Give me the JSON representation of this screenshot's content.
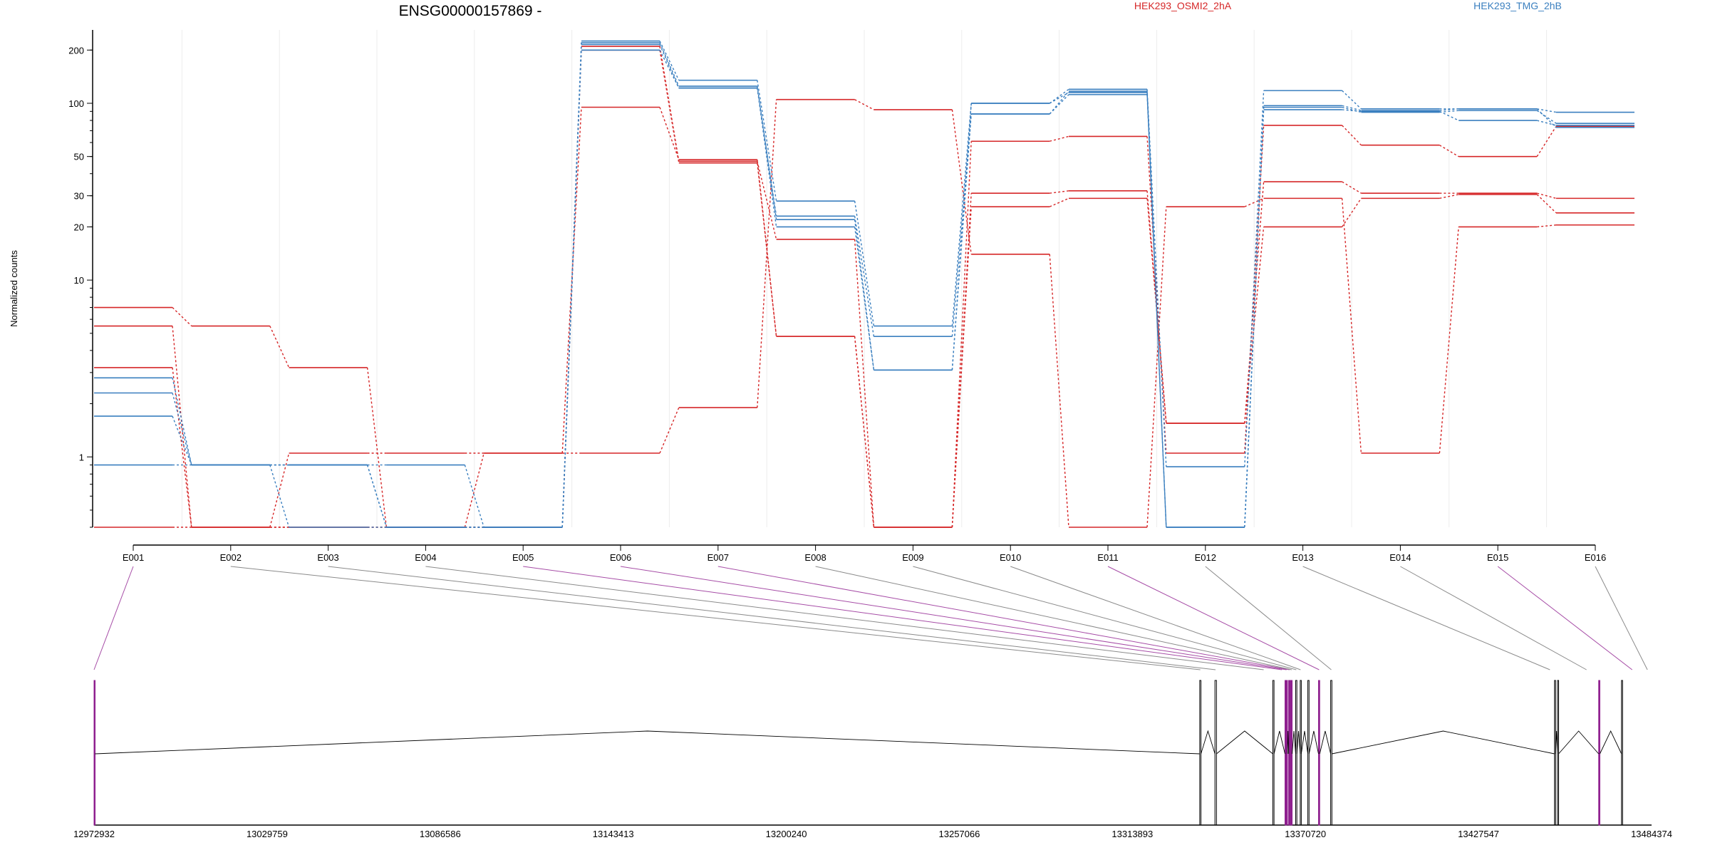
{
  "chart_data": {
    "type": "line",
    "title": "ENSG00000157869 -",
    "ylabel": "Normalized counts",
    "y_scale": "log",
    "y_ticks": [
      "200",
      "100",
      "50",
      "30",
      "20",
      "10",
      "1"
    ],
    "ylim": [
      0.4,
      260
    ],
    "categories": [
      "E001",
      "E002",
      "E003",
      "E004",
      "E005",
      "E006",
      "E007",
      "E008",
      "E009",
      "E010",
      "E011",
      "E012",
      "E013",
      "E014",
      "E015",
      "E016"
    ],
    "groups": [
      {
        "name": "HEK293_OSMI2_2hA",
        "color": "#d62728"
      },
      {
        "name": "HEK293_TMG_2hB",
        "color": "#3a7fbf"
      }
    ],
    "series": [
      {
        "group": "HEK293_OSMI2_2hA",
        "values": [
          7.0,
          5.5,
          3.2,
          0.4,
          1.05,
          1.05,
          1.9,
          105,
          92,
          14,
          0.4,
          26,
          29,
          1.05,
          20,
          20.5
        ]
      },
      {
        "group": "HEK293_OSMI2_2hA",
        "values": [
          5.5,
          0.4,
          0.4,
          0.4,
          0.4,
          210,
          47,
          17,
          0.4,
          31,
          32,
          1.55,
          36,
          31,
          31,
          29
        ]
      },
      {
        "group": "HEK293_OSMI2_2hA",
        "values": [
          3.2,
          0.4,
          1.05,
          1.05,
          1.05,
          95,
          48,
          4.8,
          0.4,
          61,
          65,
          1.05,
          75,
          58,
          50,
          74
        ]
      },
      {
        "group": "HEK293_OSMI2_2hA",
        "values": [
          0.4,
          0.4,
          0.4,
          0.4,
          0.4,
          200,
          46,
          4.8,
          0.4,
          26,
          29,
          1.55,
          20,
          29,
          30.5,
          24
        ]
      },
      {
        "group": "HEK293_TMG_2hB",
        "values": [
          2.3,
          0.9,
          0.9,
          0.9,
          0.4,
          225,
          135,
          28,
          5.5,
          100,
          120,
          0.88,
          118,
          93,
          93,
          89
        ]
      },
      {
        "group": "HEK293_TMG_2hB",
        "values": [
          1.7,
          0.9,
          0.9,
          0.4,
          0.4,
          215,
          122,
          23,
          4.8,
          87,
          112,
          0.4,
          95,
          89,
          91,
          77
        ]
      },
      {
        "group": "HEK293_TMG_2hB",
        "values": [
          0.9,
          0.9,
          0.9,
          0.4,
          0.4,
          200,
          122,
          20,
          3.1,
          87,
          117,
          0.4,
          92,
          90,
          80,
          75
        ]
      },
      {
        "group": "HEK293_TMG_2hB",
        "values": [
          2.8,
          0.9,
          0.4,
          0.4,
          0.4,
          220,
          125,
          22,
          3.1,
          100,
          115,
          0.4,
          97,
          91,
          93,
          73
        ]
      }
    ],
    "gene_model": {
      "coord_ticks": [
        "12972932",
        "13029759",
        "13086586",
        "13143413",
        "13200240",
        "13257066",
        "13313893",
        "13370720",
        "13427547",
        "13484374"
      ],
      "coord_range": [
        12972932,
        13484374
      ],
      "exons": [
        {
          "id": "E001",
          "start": 12972932,
          "end": 12973200,
          "highlight": true
        },
        {
          "id": "E002",
          "start": 13336000,
          "end": 13336400,
          "highlight": false
        },
        {
          "id": "E003",
          "start": 13341000,
          "end": 13341500,
          "highlight": false
        },
        {
          "id": "E004",
          "start": 13360000,
          "end": 13360400,
          "highlight": false
        },
        {
          "id": "E005",
          "start": 13364000,
          "end": 13364800,
          "highlight": true
        },
        {
          "id": "E006",
          "start": 13365200,
          "end": 13365800,
          "highlight": true
        },
        {
          "id": "E007",
          "start": 13366000,
          "end": 13366300,
          "highlight": true
        },
        {
          "id": "E008",
          "start": 13367500,
          "end": 13367900,
          "highlight": false
        },
        {
          "id": "E009",
          "start": 13369000,
          "end": 13369300,
          "highlight": false
        },
        {
          "id": "E010",
          "start": 13371500,
          "end": 13371900,
          "highlight": false
        },
        {
          "id": "E011",
          "start": 13375000,
          "end": 13375400,
          "highlight": true
        },
        {
          "id": "E012",
          "start": 13379000,
          "end": 13379400,
          "highlight": false
        },
        {
          "id": "E013",
          "start": 13452500,
          "end": 13452800,
          "highlight": false
        },
        {
          "id": "E014",
          "start": 13453500,
          "end": 13453800,
          "highlight": false
        },
        {
          "id": "E015",
          "start": 13467000,
          "end": 13467400,
          "highlight": true
        },
        {
          "id": "E016",
          "start": 13474500,
          "end": 13474800,
          "highlight": false
        }
      ],
      "connector_targets": [
        12972932,
        13336200,
        13341200,
        13357000,
        13363000,
        13364500,
        13365500,
        13366200,
        13367700,
        13369100,
        13375200,
        13379200,
        13451000,
        13463000,
        13478000,
        13483000
      ]
    }
  }
}
